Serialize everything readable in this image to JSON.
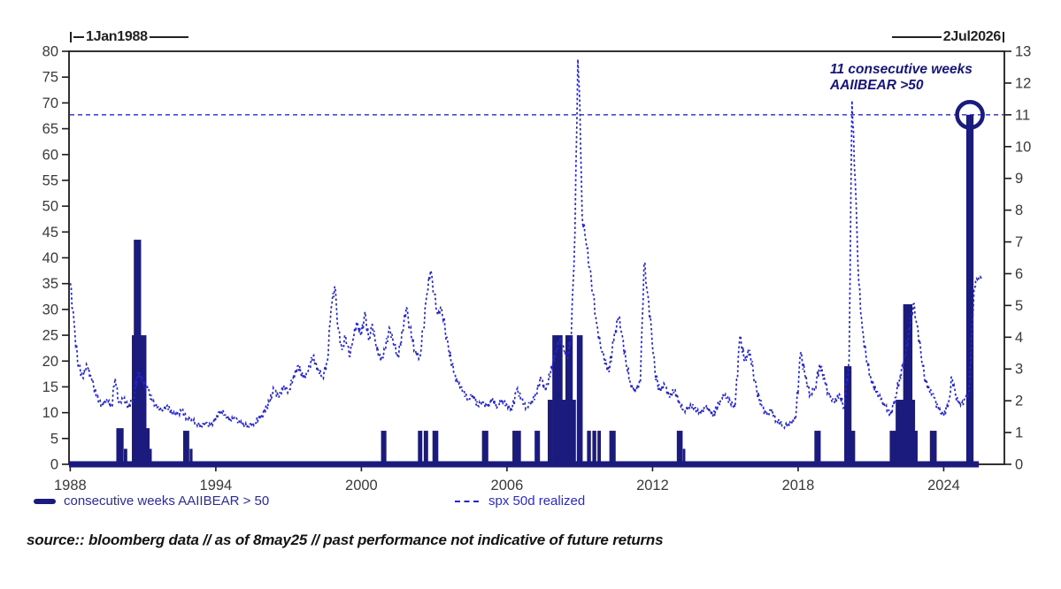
{
  "header": {
    "start_date": "1Jan1988",
    "end_date": "2Jul2026"
  },
  "annotation": {
    "line1": "11 consecutive weeks",
    "line2": "AAIIBEAR >50"
  },
  "legend": {
    "bars_label": "consecutive weeks AAIIBEAR > 50",
    "line_label": "spx 50d realized"
  },
  "source_note": "source:: bloomberg data // as of 8may25 // past performance not indicative of future returns",
  "colors": {
    "bars": "#1b1b7e",
    "line": "#2525cd",
    "reference_line": "#2828cf",
    "frame": "#1b1b1b",
    "tick_label": "#3a3a3a",
    "annotation": "#15157d"
  },
  "chart_data": {
    "type": "mixed bar + line (dual axis time series)",
    "x_range": [
      1987.95,
      2026.5
    ],
    "x_axis": {
      "tick_years": [
        1988,
        1994,
        2000,
        2006,
        2012,
        2018,
        2024
      ]
    },
    "left_y_axis": {
      "series": "consecutive weeks AAIIBEAR > 50",
      "min": 0,
      "max": 80,
      "ticks": [
        80,
        75,
        70,
        65,
        60,
        55,
        50,
        45,
        40,
        35,
        30,
        25,
        20,
        15,
        10,
        5,
        0
      ]
    },
    "right_y_axis": {
      "series": "spx 50d realized",
      "min": 0,
      "max": 13,
      "ticks": [
        13,
        12,
        11,
        10,
        9,
        8,
        7,
        6,
        5,
        4,
        3,
        2,
        1,
        0
      ]
    },
    "reference_line": {
      "axis": "right",
      "value": 11,
      "style": "dashed"
    },
    "highlight_circle": {
      "year": 2025.08,
      "axis": "right",
      "value": 11
    },
    "last_bar_extent": 2025.45,
    "bars_series": {
      "name": "consecutive weeks AAIIBEAR > 50",
      "axis": "left",
      "units": "weeks",
      "points_center_height_width": [
        [
          1990.05,
          7,
          0.3
        ],
        [
          1990.28,
          3,
          0.14
        ],
        [
          1990.84,
          25,
          0.6
        ],
        [
          1990.77,
          43.5,
          0.3
        ],
        [
          1991.12,
          7,
          0.3
        ],
        [
          1991.3,
          3,
          0.12
        ],
        [
          1992.78,
          6.5,
          0.25
        ],
        [
          1992.98,
          3,
          0.12
        ],
        [
          2000.92,
          6.5,
          0.22
        ],
        [
          2002.42,
          6.5,
          0.18
        ],
        [
          2002.66,
          6.5,
          0.18
        ],
        [
          2003.05,
          6.5,
          0.24
        ],
        [
          2005.1,
          6.5,
          0.26
        ],
        [
          2006.4,
          6.5,
          0.35
        ],
        [
          2007.25,
          6.5,
          0.22
        ],
        [
          2007.78,
          12.5,
          0.2
        ],
        [
          2008.08,
          25,
          0.42
        ],
        [
          2008.35,
          12.5,
          0.2
        ],
        [
          2008.56,
          25,
          0.3
        ],
        [
          2008.76,
          12.5,
          0.16
        ],
        [
          2009.0,
          25,
          0.24
        ],
        [
          2009.38,
          6.5,
          0.16
        ],
        [
          2009.6,
          6.5,
          0.16
        ],
        [
          2009.8,
          6.5,
          0.14
        ],
        [
          2010.35,
          6.5,
          0.26
        ],
        [
          2013.12,
          6.5,
          0.24
        ],
        [
          2013.3,
          3,
          0.1
        ],
        [
          2018.8,
          6.5,
          0.26
        ],
        [
          2020.05,
          19,
          0.3
        ],
        [
          2020.26,
          6.5,
          0.18
        ],
        [
          2022.35,
          6.5,
          1.15
        ],
        [
          2022.42,
          12.5,
          0.8
        ],
        [
          2022.52,
          31,
          0.38
        ],
        [
          2023.57,
          6.5,
          0.28
        ],
        [
          2025.08,
          67.7,
          0.3
        ]
      ]
    },
    "line_series": {
      "name": "spx 50d realized",
      "axis": "right",
      "style": "dashed",
      "points_year_value": [
        [
          1988.0,
          5.7
        ],
        [
          1988.15,
          4.55
        ],
        [
          1988.3,
          3.25
        ],
        [
          1988.5,
          2.75
        ],
        [
          1988.7,
          3.1
        ],
        [
          1988.9,
          2.6
        ],
        [
          1989.1,
          2.1
        ],
        [
          1989.3,
          1.85
        ],
        [
          1989.5,
          2.05
        ],
        [
          1989.7,
          1.8
        ],
        [
          1989.85,
          2.7
        ],
        [
          1990.0,
          1.95
        ],
        [
          1990.2,
          2.05
        ],
        [
          1990.4,
          1.8
        ],
        [
          1990.6,
          2.1
        ],
        [
          1990.8,
          2.9
        ],
        [
          1991.0,
          2.6
        ],
        [
          1991.2,
          2.35
        ],
        [
          1991.4,
          1.95
        ],
        [
          1991.6,
          1.8
        ],
        [
          1991.8,
          1.7
        ],
        [
          1992.0,
          1.85
        ],
        [
          1992.2,
          1.6
        ],
        [
          1992.4,
          1.55
        ],
        [
          1992.6,
          1.7
        ],
        [
          1992.8,
          1.45
        ],
        [
          1993.0,
          1.4
        ],
        [
          1993.2,
          1.3
        ],
        [
          1993.4,
          1.2
        ],
        [
          1993.6,
          1.3
        ],
        [
          1993.8,
          1.2
        ],
        [
          1994.0,
          1.45
        ],
        [
          1994.2,
          1.7
        ],
        [
          1994.4,
          1.55
        ],
        [
          1994.6,
          1.4
        ],
        [
          1994.8,
          1.45
        ],
        [
          1995.0,
          1.3
        ],
        [
          1995.3,
          1.2
        ],
        [
          1995.6,
          1.3
        ],
        [
          1995.9,
          1.55
        ],
        [
          1996.2,
          1.95
        ],
        [
          1996.4,
          2.35
        ],
        [
          1996.6,
          2.1
        ],
        [
          1996.8,
          2.45
        ],
        [
          1997.0,
          2.3
        ],
        [
          1997.2,
          2.75
        ],
        [
          1997.4,
          3.1
        ],
        [
          1997.6,
          2.7
        ],
        [
          1997.8,
          2.9
        ],
        [
          1998.0,
          3.4
        ],
        [
          1998.2,
          3.0
        ],
        [
          1998.4,
          2.75
        ],
        [
          1998.6,
          3.25
        ],
        [
          1998.75,
          4.9
        ],
        [
          1998.9,
          5.6
        ],
        [
          1999.05,
          4.25
        ],
        [
          1999.2,
          3.6
        ],
        [
          1999.35,
          4.05
        ],
        [
          1999.5,
          3.4
        ],
        [
          1999.65,
          3.9
        ],
        [
          1999.8,
          4.45
        ],
        [
          2000.0,
          4.05
        ],
        [
          2000.15,
          4.8
        ],
        [
          2000.3,
          3.9
        ],
        [
          2000.45,
          4.4
        ],
        [
          2000.6,
          3.75
        ],
        [
          2000.8,
          3.25
        ],
        [
          2001.0,
          3.65
        ],
        [
          2001.15,
          4.3
        ],
        [
          2001.3,
          3.9
        ],
        [
          2001.5,
          3.4
        ],
        [
          2001.7,
          4.15
        ],
        [
          2001.85,
          4.95
        ],
        [
          2002.0,
          4.25
        ],
        [
          2002.2,
          3.6
        ],
        [
          2002.4,
          3.35
        ],
        [
          2002.55,
          4.25
        ],
        [
          2002.7,
          5.35
        ],
        [
          2002.85,
          6.1
        ],
        [
          2003.0,
          5.35
        ],
        [
          2003.15,
          4.7
        ],
        [
          2003.3,
          4.95
        ],
        [
          2003.45,
          4.25
        ],
        [
          2003.6,
          3.6
        ],
        [
          2003.8,
          2.9
        ],
        [
          2004.0,
          2.5
        ],
        [
          2004.2,
          2.3
        ],
        [
          2004.4,
          2.05
        ],
        [
          2004.6,
          2.2
        ],
        [
          2004.8,
          1.85
        ],
        [
          2005.0,
          1.95
        ],
        [
          2005.2,
          1.8
        ],
        [
          2005.4,
          2.05
        ],
        [
          2005.6,
          1.8
        ],
        [
          2005.8,
          2.05
        ],
        [
          2006.0,
          1.85
        ],
        [
          2006.2,
          1.7
        ],
        [
          2006.4,
          2.35
        ],
        [
          2006.6,
          2.05
        ],
        [
          2006.8,
          1.8
        ],
        [
          2007.0,
          1.95
        ],
        [
          2007.2,
          2.2
        ],
        [
          2007.4,
          2.7
        ],
        [
          2007.6,
          2.3
        ],
        [
          2007.8,
          2.9
        ],
        [
          2008.0,
          3.5
        ],
        [
          2008.2,
          4.0
        ],
        [
          2008.35,
          3.6
        ],
        [
          2008.5,
          3.35
        ],
        [
          2008.65,
          4.05
        ],
        [
          2008.8,
          7.3
        ],
        [
          2008.92,
          12.75
        ],
        [
          2009.0,
          11.4
        ],
        [
          2009.1,
          7.8
        ],
        [
          2009.25,
          7.05
        ],
        [
          2009.4,
          6.2
        ],
        [
          2009.55,
          5.35
        ],
        [
          2009.7,
          4.4
        ],
        [
          2009.85,
          3.75
        ],
        [
          2010.0,
          3.35
        ],
        [
          2010.2,
          2.9
        ],
        [
          2010.4,
          3.9
        ],
        [
          2010.6,
          4.65
        ],
        [
          2010.75,
          4.05
        ],
        [
          2010.9,
          3.25
        ],
        [
          2011.1,
          2.5
        ],
        [
          2011.3,
          2.3
        ],
        [
          2011.5,
          2.6
        ],
        [
          2011.65,
          6.35
        ],
        [
          2011.8,
          5.35
        ],
        [
          2011.95,
          4.25
        ],
        [
          2012.1,
          2.9
        ],
        [
          2012.3,
          2.3
        ],
        [
          2012.5,
          2.5
        ],
        [
          2012.7,
          2.1
        ],
        [
          2012.9,
          2.35
        ],
        [
          2013.1,
          1.95
        ],
        [
          2013.3,
          1.7
        ],
        [
          2013.6,
          1.85
        ],
        [
          2013.9,
          1.6
        ],
        [
          2014.2,
          1.8
        ],
        [
          2014.5,
          1.55
        ],
        [
          2014.8,
          2.05
        ],
        [
          2015.0,
          2.2
        ],
        [
          2015.2,
          1.95
        ],
        [
          2015.4,
          1.8
        ],
        [
          2015.6,
          4.0
        ],
        [
          2015.8,
          3.25
        ],
        [
          2016.0,
          3.6
        ],
        [
          2016.15,
          2.9
        ],
        [
          2016.3,
          2.3
        ],
        [
          2016.5,
          1.8
        ],
        [
          2016.7,
          1.55
        ],
        [
          2016.9,
          1.7
        ],
        [
          2017.1,
          1.4
        ],
        [
          2017.4,
          1.2
        ],
        [
          2017.7,
          1.3
        ],
        [
          2017.9,
          1.45
        ],
        [
          2018.1,
          3.5
        ],
        [
          2018.3,
          2.75
        ],
        [
          2018.5,
          2.2
        ],
        [
          2018.7,
          2.45
        ],
        [
          2018.9,
          3.15
        ],
        [
          2019.1,
          2.6
        ],
        [
          2019.3,
          2.1
        ],
        [
          2019.5,
          1.95
        ],
        [
          2019.7,
          2.2
        ],
        [
          2019.9,
          1.8
        ],
        [
          2020.1,
          3.25
        ],
        [
          2020.22,
          11.45
        ],
        [
          2020.35,
          8.95
        ],
        [
          2020.5,
          5.7
        ],
        [
          2020.65,
          4.25
        ],
        [
          2020.8,
          3.4
        ],
        [
          2021.0,
          2.7
        ],
        [
          2021.2,
          2.3
        ],
        [
          2021.4,
          2.05
        ],
        [
          2021.6,
          1.8
        ],
        [
          2021.8,
          1.55
        ],
        [
          2022.0,
          2.1
        ],
        [
          2022.2,
          2.75
        ],
        [
          2022.4,
          3.4
        ],
        [
          2022.6,
          4.25
        ],
        [
          2022.75,
          5.05
        ],
        [
          2022.9,
          4.4
        ],
        [
          2023.05,
          3.6
        ],
        [
          2023.2,
          2.75
        ],
        [
          2023.4,
          2.35
        ],
        [
          2023.6,
          2.1
        ],
        [
          2023.8,
          1.7
        ],
        [
          2024.0,
          1.55
        ],
        [
          2024.2,
          1.95
        ],
        [
          2024.35,
          2.75
        ],
        [
          2024.5,
          2.1
        ],
        [
          2024.7,
          1.85
        ],
        [
          2024.9,
          2.05
        ],
        [
          2025.05,
          2.3
        ],
        [
          2025.15,
          4.05
        ],
        [
          2025.25,
          5.5
        ],
        [
          2025.35,
          5.85
        ],
        [
          2025.55,
          5.85
        ]
      ]
    }
  }
}
